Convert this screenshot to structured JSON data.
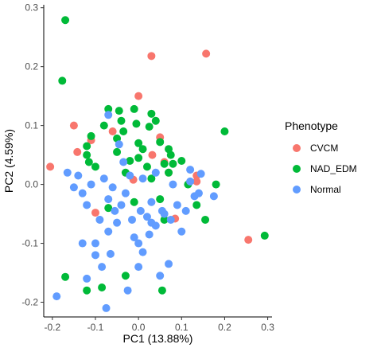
{
  "chart_data": {
    "type": "scatter",
    "title": "",
    "xlabel": "PC1 (13.88%)",
    "ylabel": "PC2 (4.59%)",
    "xlim": [
      -0.22,
      0.31
    ],
    "ylim": [
      -0.225,
      0.305
    ],
    "xticks": [
      -0.2,
      -0.1,
      0.0,
      0.1,
      0.2,
      0.3
    ],
    "xtick_labels": [
      "-0.2",
      "-0.1",
      "0.0",
      "0.1",
      "0.2",
      "0.3"
    ],
    "yticks": [
      -0.2,
      -0.1,
      0.0,
      0.1,
      0.2,
      0.3
    ],
    "ytick_labels": [
      "-0.2",
      "-0.1",
      "0.0",
      "0.1",
      "0.2",
      "0.3"
    ],
    "grid": false,
    "legend": {
      "title": "Phenotype",
      "position": "right"
    },
    "series": [
      {
        "name": "CVCM",
        "color": "#F8766D",
        "points": [
          [
            -0.205,
            0.03
          ],
          [
            -0.15,
            0.1
          ],
          [
            -0.142,
            0.055
          ],
          [
            -0.11,
            0.075
          ],
          [
            -0.1,
            -0.048
          ],
          [
            -0.06,
            0.09
          ],
          [
            -0.012,
            0.008
          ],
          [
            0.0,
            0.15
          ],
          [
            0.032,
            0.05
          ],
          [
            0.05,
            0.08
          ],
          [
            0.06,
            0.038
          ],
          [
            0.07,
            0.02
          ],
          [
            0.085,
            -0.058
          ],
          [
            0.135,
            0.015
          ],
          [
            0.135,
            0.005
          ],
          [
            0.157,
            0.222
          ],
          [
            0.255,
            -0.094
          ],
          [
            0.03,
            0.218
          ]
        ]
      },
      {
        "name": "NAD_EDM",
        "color": "#00BA38",
        "points": [
          [
            -0.17,
            0.279
          ],
          [
            -0.177,
            0.176
          ],
          [
            -0.17,
            -0.157
          ],
          [
            -0.12,
            0.065
          ],
          [
            -0.115,
            0.038
          ],
          [
            -0.11,
            0.082
          ],
          [
            -0.12,
            -0.18
          ],
          [
            -0.07,
            0.128
          ],
          [
            -0.08,
            0.1
          ],
          [
            -0.045,
            0.125
          ],
          [
            -0.05,
            0.078
          ],
          [
            -0.05,
            0.055
          ],
          [
            -0.04,
            0.108
          ],
          [
            -0.035,
            0.09
          ],
          [
            -0.03,
            0.02
          ],
          [
            -0.02,
            0.04
          ],
          [
            -0.07,
            -0.04
          ],
          [
            -0.085,
            -0.175
          ],
          [
            -0.03,
            -0.155
          ],
          [
            -0.01,
            0.128
          ],
          [
            -0.005,
            0.103
          ],
          [
            0.0,
            0.045
          ],
          [
            0.0,
            0.07
          ],
          [
            0.01,
            0.06
          ],
          [
            0.02,
            0.03
          ],
          [
            0.025,
            0.098
          ],
          [
            0.03,
            0.12
          ],
          [
            0.04,
            0.108
          ],
          [
            0.05,
            0.072
          ],
          [
            0.06,
            0.035
          ],
          [
            0.07,
            0.06
          ],
          [
            0.07,
            0.02
          ],
          [
            0.075,
            0.05
          ],
          [
            0.08,
            0.035
          ],
          [
            0.06,
            -0.06
          ],
          [
            0.05,
            -0.025
          ],
          [
            0.1,
            0.04
          ],
          [
            0.115,
            0.0
          ],
          [
            0.135,
            -0.035
          ],
          [
            0.155,
            -0.06
          ],
          [
            0.2,
            0.09
          ],
          [
            0.18,
            0.0
          ],
          [
            0.293,
            -0.087
          ],
          [
            0.055,
            -0.18
          ],
          [
            -0.1,
            0.03
          ],
          [
            -0.12,
            0.05
          ],
          [
            -0.01,
            -0.03
          ],
          [
            0.03,
            0.01
          ]
        ]
      },
      {
        "name": "Normal",
        "color": "#619CFF",
        "points": [
          [
            -0.19,
            -0.19
          ],
          [
            -0.165,
            0.02
          ],
          [
            -0.14,
            0.015
          ],
          [
            -0.13,
            -0.015
          ],
          [
            -0.12,
            -0.035
          ],
          [
            -0.11,
            0.0
          ],
          [
            -0.1,
            -0.1
          ],
          [
            -0.09,
            -0.06
          ],
          [
            -0.085,
            -0.14
          ],
          [
            -0.07,
            -0.08
          ],
          [
            -0.065,
            -0.118
          ],
          [
            -0.055,
            -0.045
          ],
          [
            -0.04,
            -0.035
          ],
          [
            -0.03,
            -0.015
          ],
          [
            -0.02,
            0.015
          ],
          [
            -0.015,
            -0.06
          ],
          [
            -0.01,
            -0.09
          ],
          [
            0.0,
            -0.1
          ],
          [
            0.005,
            -0.045
          ],
          [
            0.01,
            -0.115
          ],
          [
            0.02,
            -0.055
          ],
          [
            0.025,
            -0.085
          ],
          [
            0.03,
            -0.065
          ],
          [
            0.04,
            -0.07
          ],
          [
            0.05,
            -0.155
          ],
          [
            0.055,
            -0.045
          ],
          [
            0.07,
            -0.135
          ],
          [
            0.075,
            -0.06
          ],
          [
            0.09,
            -0.035
          ],
          [
            0.1,
            -0.08
          ],
          [
            0.12,
            0.025
          ],
          [
            0.13,
            -0.02
          ],
          [
            0.14,
            -0.015
          ],
          [
            0.145,
            0.018
          ],
          [
            -0.13,
            -0.1
          ],
          [
            -0.12,
            -0.16
          ],
          [
            -0.1,
            -0.12
          ],
          [
            -0.07,
            -0.025
          ],
          [
            -0.05,
            -0.065
          ],
          [
            -0.025,
            -0.18
          ],
          [
            -0.045,
            0.068
          ],
          [
            -0.035,
            0.038
          ],
          [
            -0.07,
            0.118
          ],
          [
            -0.06,
            -0.005
          ],
          [
            0.01,
            0.01
          ],
          [
            0.04,
            0.02
          ],
          [
            0.08,
            0.0
          ],
          [
            0.12,
            0.005
          ],
          [
            -0.075,
            -0.21
          ],
          [
            -0.08,
            0.01
          ],
          [
            -0.15,
            -0.005
          ],
          [
            0.0,
            -0.14
          ],
          [
            0.03,
            -0.03
          ],
          [
            0.06,
            -0.05
          ],
          [
            0.175,
            -0.02
          ],
          [
            0.11,
            -0.045
          ]
        ]
      }
    ]
  }
}
